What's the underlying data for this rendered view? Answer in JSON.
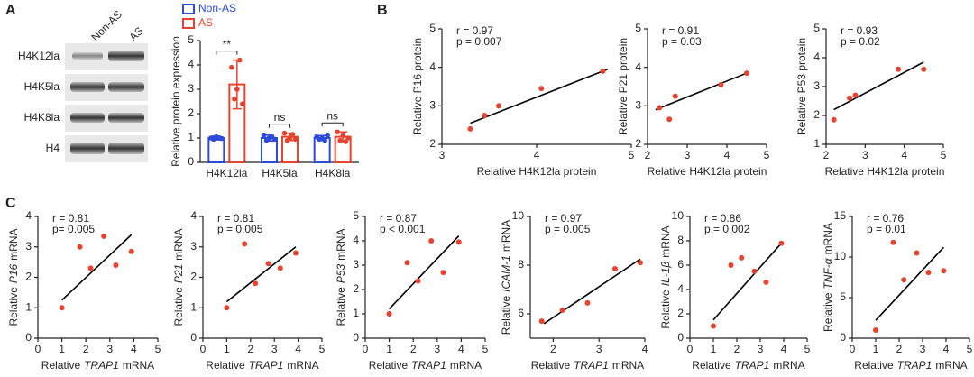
{
  "panel_labels": [
    "A",
    "B",
    "C"
  ],
  "blot": {
    "columns": [
      "Non-AS",
      "AS"
    ],
    "rows": [
      "H4K12la",
      "H4K5la",
      "H4K8la",
      "H4"
    ]
  },
  "chart_data": [
    {
      "type": "bar",
      "y_label": "Relative protein expression",
      "categories": [
        "H4K12la",
        "H4K5la",
        "H4K8la"
      ],
      "series": [
        {
          "name": "Non-AS",
          "color": "#2b4bd8",
          "values": [
            1,
            1,
            1
          ],
          "errors": [
            0.08,
            0.12,
            0.1
          ],
          "points": [
            [
              1.0,
              0.95,
              1.05,
              1.0,
              0.98
            ],
            [
              1.1,
              0.9,
              1.0,
              1.05,
              0.95
            ],
            [
              1.05,
              0.95,
              1.0,
              0.9,
              1.1
            ]
          ]
        },
        {
          "name": "AS",
          "color": "#e8432e",
          "values": [
            3.2,
            1.05,
            1.05
          ],
          "errors": [
            1.0,
            0.15,
            0.2
          ],
          "points": [
            [
              3.9,
              2.6,
              3.0,
              4.2,
              2.4
            ],
            [
              1.2,
              0.9,
              1.0,
              1.15,
              0.95
            ],
            [
              1.25,
              0.9,
              1.1,
              0.85,
              1.0
            ]
          ]
        }
      ],
      "annotations": [
        "**",
        "ns",
        "ns"
      ],
      "ylim": [
        0,
        5
      ],
      "yticks": [
        0,
        1,
        2,
        3,
        4,
        5
      ]
    },
    {
      "type": "scatter",
      "color": "#e8432e",
      "x_label": "Relative H4K12la protein",
      "y_label": "Relative P16 protein",
      "annotations": [
        "r = 0.97",
        "p = 0.007"
      ],
      "x": [
        3.3,
        3.45,
        3.6,
        4.05,
        4.7
      ],
      "values": [
        2.4,
        2.75,
        3.0,
        3.45,
        3.9
      ],
      "fit": {
        "x": [
          3.3,
          4.75
        ],
        "y": [
          2.55,
          3.95
        ]
      },
      "xlim": [
        3,
        5
      ],
      "xticks": [
        3,
        4,
        5
      ],
      "ylim": [
        2,
        5
      ],
      "yticks": [
        2,
        3,
        4,
        5
      ]
    },
    {
      "type": "scatter",
      "color": "#e8432e",
      "x_label": "Relative H4K12la protein",
      "y_label": "Relative P21 protein",
      "annotations": [
        "r = 0.91",
        "p = 0.03"
      ],
      "x": [
        2.3,
        2.55,
        2.7,
        3.85,
        4.5
      ],
      "values": [
        2.95,
        2.65,
        3.25,
        3.55,
        3.85
      ],
      "fit": {
        "x": [
          2.2,
          4.5
        ],
        "y": [
          2.9,
          3.85
        ]
      },
      "xlim": [
        2,
        5
      ],
      "xticks": [
        2,
        3,
        4,
        5
      ],
      "ylim": [
        2,
        5
      ],
      "yticks": [
        2,
        3,
        4,
        5
      ]
    },
    {
      "type": "scatter",
      "color": "#e8432e",
      "x_label": "Relative H4K12la protein",
      "y_label": "Relative P53 protein",
      "annotations": [
        "r = 0.93",
        "p = 0.02"
      ],
      "x": [
        2.2,
        2.6,
        2.75,
        3.85,
        4.5
      ],
      "values": [
        1.85,
        2.6,
        2.7,
        3.6,
        3.6
      ],
      "fit": {
        "x": [
          2.2,
          4.5
        ],
        "y": [
          2.2,
          3.85
        ]
      },
      "xlim": [
        2,
        5
      ],
      "xticks": [
        2,
        3,
        4,
        5
      ],
      "ylim": [
        1,
        5
      ],
      "yticks": [
        1,
        2,
        3,
        4,
        5
      ]
    },
    {
      "type": "scatter",
      "color": "#e8432e",
      "x_label": [
        "Relative",
        "TRAP1",
        "mRNA"
      ],
      "y_label": [
        "Relative",
        "P16",
        "mRNA"
      ],
      "annotations": [
        "r = 0.81",
        "p= 0.005"
      ],
      "x": [
        1,
        1.75,
        2.2,
        2.75,
        3.25,
        3.9
      ],
      "values": [
        1,
        3,
        2.3,
        3.35,
        2.4,
        2.85
      ],
      "fit": {
        "x": [
          1,
          3.9
        ],
        "y": [
          1.25,
          3.4
        ]
      },
      "xlim": [
        0,
        5
      ],
      "xticks": [
        0,
        1,
        2,
        3,
        4,
        5
      ],
      "ylim": [
        0,
        4
      ],
      "yticks": [
        0,
        1,
        2,
        3,
        4
      ]
    },
    {
      "type": "scatter",
      "color": "#e8432e",
      "x_label": [
        "Relative",
        "TRAP1",
        "mRNA"
      ],
      "y_label": [
        "Relative",
        "P21",
        "mRNA"
      ],
      "annotations": [
        "r = 0.81",
        "p = 0.005"
      ],
      "x": [
        1,
        1.75,
        2.2,
        2.75,
        3.25,
        3.9
      ],
      "values": [
        1,
        3.1,
        1.8,
        2.45,
        2.3,
        2.8
      ],
      "fit": {
        "x": [
          1,
          3.9
        ],
        "y": [
          1.2,
          3.0
        ]
      },
      "xlim": [
        0,
        5
      ],
      "xticks": [
        0,
        1,
        2,
        3,
        4,
        5
      ],
      "ylim": [
        0,
        4
      ],
      "yticks": [
        0,
        1,
        2,
        3,
        4
      ]
    },
    {
      "type": "scatter",
      "color": "#e8432e",
      "x_label": [
        "Relative",
        "TRAP1",
        "mRNA"
      ],
      "y_label": [
        "Relative",
        "P53",
        "mRNA"
      ],
      "annotations": [
        "r = 0.87",
        "p < 0.001"
      ],
      "x": [
        1,
        1.75,
        2.2,
        2.75,
        3.25,
        3.9
      ],
      "values": [
        1,
        3.1,
        2.35,
        4.0,
        2.7,
        3.95
      ],
      "fit": {
        "x": [
          1,
          3.9
        ],
        "y": [
          1.2,
          4.2
        ]
      },
      "xlim": [
        0,
        5
      ],
      "xticks": [
        0,
        1,
        2,
        3,
        4,
        5
      ],
      "ylim": [
        0,
        5
      ],
      "yticks": [
        0,
        1,
        2,
        3,
        4,
        5
      ]
    },
    {
      "type": "scatter",
      "color": "#e8432e",
      "x_label": [
        "Relative",
        "TRAP1",
        "mRNA"
      ],
      "y_label": [
        "Relative",
        "ICAM-1",
        "mRNA"
      ],
      "annotations": [
        "r = 0.97",
        "p = 0.005"
      ],
      "x": [
        1.75,
        2.2,
        2.75,
        3.35,
        3.9
      ],
      "values": [
        5.7,
        6.15,
        6.45,
        7.85,
        8.1
      ],
      "fit": {
        "x": [
          1.8,
          3.9
        ],
        "y": [
          5.6,
          8.25
        ]
      },
      "xlim": [
        1.5,
        4
      ],
      "xticks": [
        2,
        3,
        4
      ],
      "ylim": [
        5,
        10
      ],
      "yticks": [
        6,
        8,
        10
      ]
    },
    {
      "type": "scatter",
      "color": "#e8432e",
      "x_label": [
        "Relative",
        "TRAP1",
        "mRNA"
      ],
      "y_label": [
        "Relative",
        "IL-1β",
        "mRNA"
      ],
      "annotations": [
        "r = 0.86",
        "p = 0.002"
      ],
      "x": [
        1,
        1.75,
        2.2,
        2.75,
        3.25,
        3.9
      ],
      "values": [
        1,
        6,
        6.6,
        5.5,
        4.6,
        7.8
      ],
      "fit": {
        "x": [
          1,
          3.9
        ],
        "y": [
          1.5,
          7.8
        ]
      },
      "xlim": [
        0,
        5
      ],
      "xticks": [
        0,
        1,
        2,
        3,
        4,
        5
      ],
      "ylim": [
        0,
        10
      ],
      "yticks": [
        0,
        2,
        4,
        6,
        8,
        10
      ]
    },
    {
      "type": "scatter",
      "color": "#e8432e",
      "x_label": [
        "Relative",
        "TRAP1",
        "mRNA"
      ],
      "y_label": [
        "Relative",
        "TNF-α",
        "mRNA"
      ],
      "annotations": [
        "r = 0.76",
        "p = 0.01"
      ],
      "x": [
        1,
        1.75,
        2.2,
        2.75,
        3.25,
        3.9
      ],
      "values": [
        1,
        11.8,
        7.2,
        10.5,
        8.1,
        8.3
      ],
      "fit": {
        "x": [
          1,
          3.9
        ],
        "y": [
          2.2,
          11.2
        ]
      },
      "xlim": [
        0,
        5
      ],
      "xticks": [
        0,
        1,
        2,
        3,
        4,
        5
      ],
      "ylim": [
        0,
        15
      ],
      "yticks": [
        0,
        5,
        10,
        15
      ]
    }
  ]
}
